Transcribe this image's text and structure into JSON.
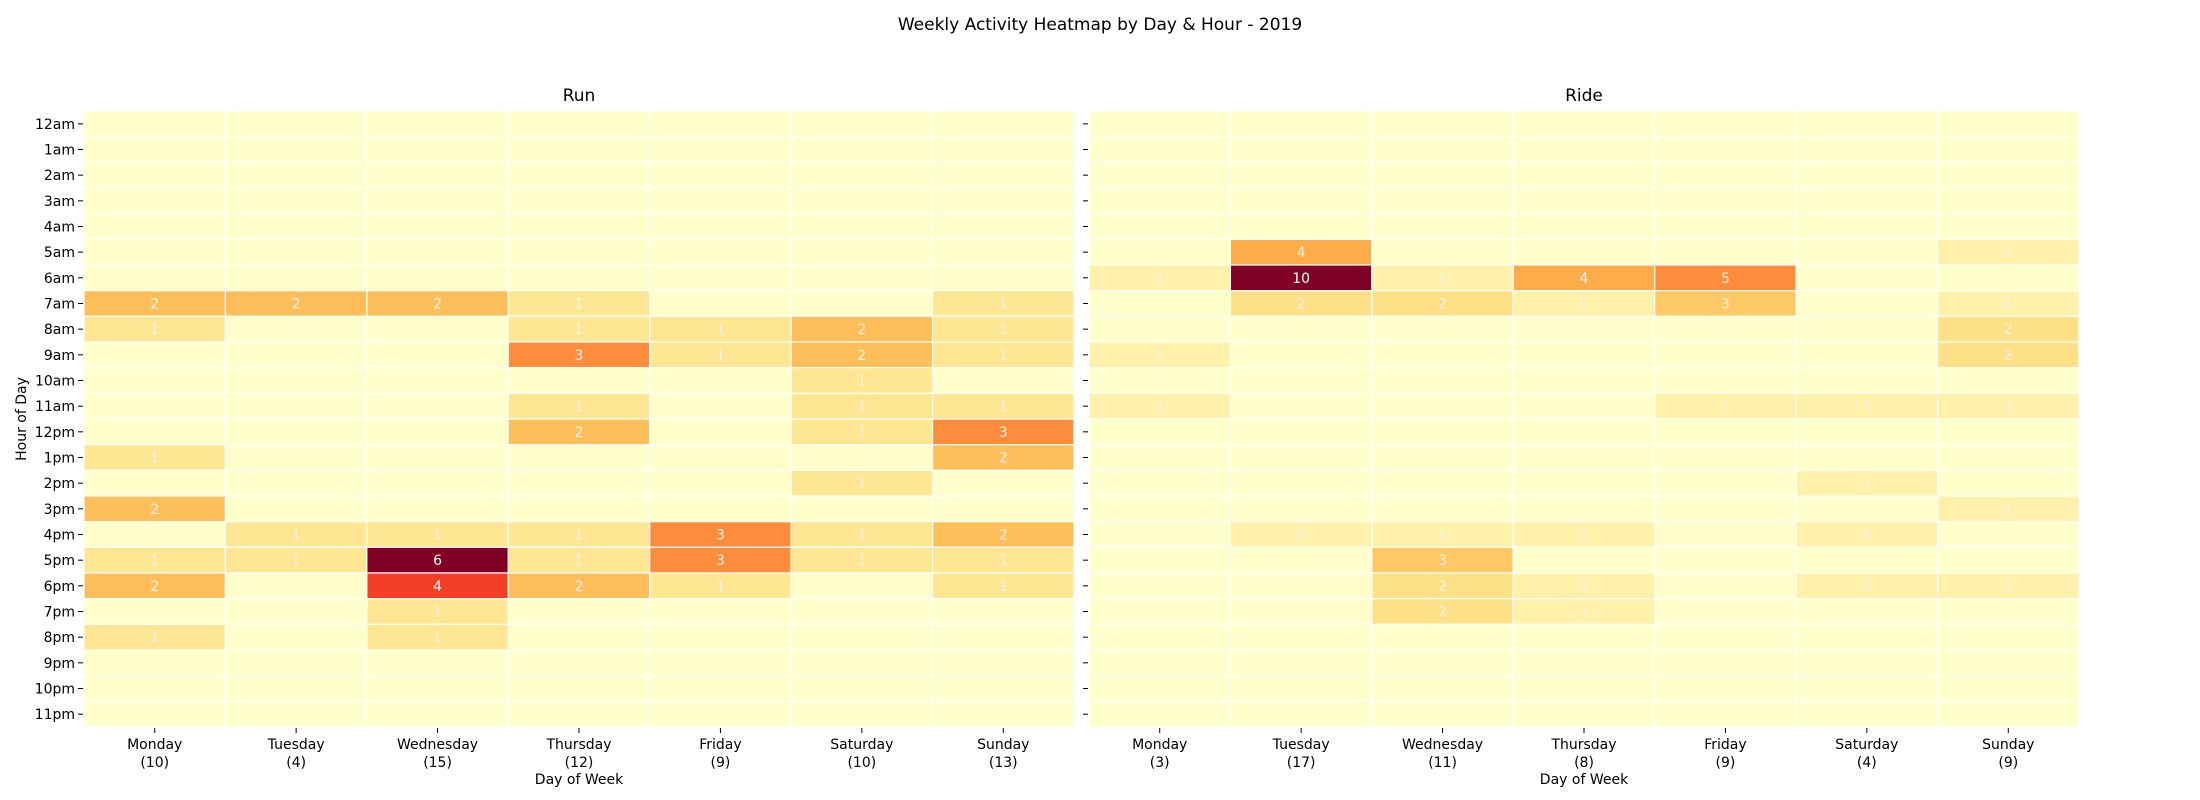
{
  "figure": {
    "title": "Weekly Activity Heatmap by Day & Hour  - 2019"
  },
  "chart_data": [
    {
      "type": "heatmap",
      "title": "Run",
      "xlabel": "Day of Week",
      "ylabel": "Hour of Day",
      "x_categories": [
        "Monday\n(10)",
        "Tuesday\n(4)",
        "Wednesday\n(15)",
        "Thursday\n(12)",
        "Friday\n(9)",
        "Saturday\n(10)",
        "Sunday\n(13)"
      ],
      "y_categories": [
        "12am",
        "1am",
        "2am",
        "3am",
        "4am",
        "5am",
        "6am",
        "7am",
        "8am",
        "9am",
        "10am",
        "11am",
        "12pm",
        "1pm",
        "2pm",
        "3pm",
        "4pm",
        "5pm",
        "6pm",
        "7pm",
        "8pm",
        "9pm",
        "10pm",
        "11pm"
      ],
      "values": [
        [
          0,
          0,
          0,
          0,
          0,
          0,
          0
        ],
        [
          0,
          0,
          0,
          0,
          0,
          0,
          0
        ],
        [
          0,
          0,
          0,
          0,
          0,
          0,
          0
        ],
        [
          0,
          0,
          0,
          0,
          0,
          0,
          0
        ],
        [
          0,
          0,
          0,
          0,
          0,
          0,
          0
        ],
        [
          0,
          0,
          0,
          0,
          0,
          0,
          0
        ],
        [
          0,
          0,
          0,
          0,
          0,
          0,
          0
        ],
        [
          2,
          2,
          2,
          1,
          0,
          0,
          1
        ],
        [
          1,
          0,
          0,
          1,
          1,
          2,
          1
        ],
        [
          0,
          0,
          0,
          3,
          1,
          2,
          1
        ],
        [
          0,
          0,
          0,
          0,
          0,
          1,
          0
        ],
        [
          0,
          0,
          0,
          1,
          0,
          1,
          1
        ],
        [
          0,
          0,
          0,
          2,
          0,
          1,
          3
        ],
        [
          1,
          0,
          0,
          0,
          0,
          0,
          2
        ],
        [
          0,
          0,
          0,
          0,
          0,
          1,
          0
        ],
        [
          2,
          0,
          0,
          0,
          0,
          0,
          0
        ],
        [
          0,
          1,
          1,
          1,
          3,
          1,
          2
        ],
        [
          1,
          1,
          6,
          1,
          3,
          1,
          1
        ],
        [
          2,
          0,
          4,
          2,
          1,
          0,
          1
        ],
        [
          0,
          0,
          1,
          0,
          0,
          0,
          0
        ],
        [
          1,
          0,
          1,
          0,
          0,
          0,
          0
        ],
        [
          0,
          0,
          0,
          0,
          0,
          0,
          0
        ],
        [
          0,
          0,
          0,
          0,
          0,
          0,
          0
        ],
        [
          0,
          0,
          0,
          0,
          0,
          0,
          0
        ]
      ],
      "vmax": 6,
      "show_zero_labels": false,
      "colormap": "YlOrRd"
    },
    {
      "type": "heatmap",
      "title": "Ride",
      "xlabel": "Day of Week",
      "ylabel": "",
      "x_categories": [
        "Monday\n(3)",
        "Tuesday\n(17)",
        "Wednesday\n(11)",
        "Thursday\n(8)",
        "Friday\n(9)",
        "Saturday\n(4)",
        "Sunday\n(9)"
      ],
      "y_categories": [
        "12am",
        "1am",
        "2am",
        "3am",
        "4am",
        "5am",
        "6am",
        "7am",
        "8am",
        "9am",
        "10am",
        "11am",
        "12pm",
        "1pm",
        "2pm",
        "3pm",
        "4pm",
        "5pm",
        "6pm",
        "7pm",
        "8pm",
        "9pm",
        "10pm",
        "11pm"
      ],
      "values": [
        [
          0,
          0,
          0,
          0,
          0,
          0,
          0
        ],
        [
          0,
          0,
          0,
          0,
          0,
          0,
          0
        ],
        [
          0,
          0,
          0,
          0,
          0,
          0,
          0
        ],
        [
          0,
          0,
          0,
          0,
          0,
          0,
          0
        ],
        [
          0,
          0,
          0,
          0,
          0,
          0,
          0
        ],
        [
          0,
          4,
          0,
          0,
          0,
          0,
          1
        ],
        [
          1,
          10,
          1,
          4,
          5,
          0,
          0
        ],
        [
          0,
          2,
          2,
          1,
          3,
          0,
          1
        ],
        [
          0,
          0,
          0,
          0,
          0,
          0,
          2
        ],
        [
          1,
          0,
          0,
          0,
          0,
          0,
          2
        ],
        [
          0,
          0,
          0,
          0,
          0,
          0,
          0
        ],
        [
          1,
          0,
          0,
          0,
          1,
          1,
          1
        ],
        [
          0,
          0,
          0,
          0,
          0,
          0,
          0
        ],
        [
          0,
          0,
          0,
          0,
          0,
          0,
          0
        ],
        [
          0,
          0,
          0,
          0,
          0,
          1,
          0
        ],
        [
          0,
          0,
          0,
          0,
          0,
          0,
          1
        ],
        [
          0,
          1,
          1,
          1,
          0,
          1,
          0
        ],
        [
          0,
          0,
          3,
          0,
          0,
          0,
          0
        ],
        [
          0,
          0,
          2,
          1,
          0,
          1,
          1
        ],
        [
          0,
          0,
          2,
          1,
          0,
          0,
          0
        ],
        [
          0,
          0,
          0,
          0,
          0,
          0,
          0
        ],
        [
          0,
          0,
          0,
          0,
          0,
          0,
          0
        ],
        [
          0,
          0,
          0,
          0,
          0,
          0,
          0
        ],
        [
          0,
          0,
          0,
          0,
          0,
          0,
          0
        ]
      ],
      "vmax": 10,
      "show_zero_labels": false,
      "colormap": "YlOrRd"
    }
  ]
}
